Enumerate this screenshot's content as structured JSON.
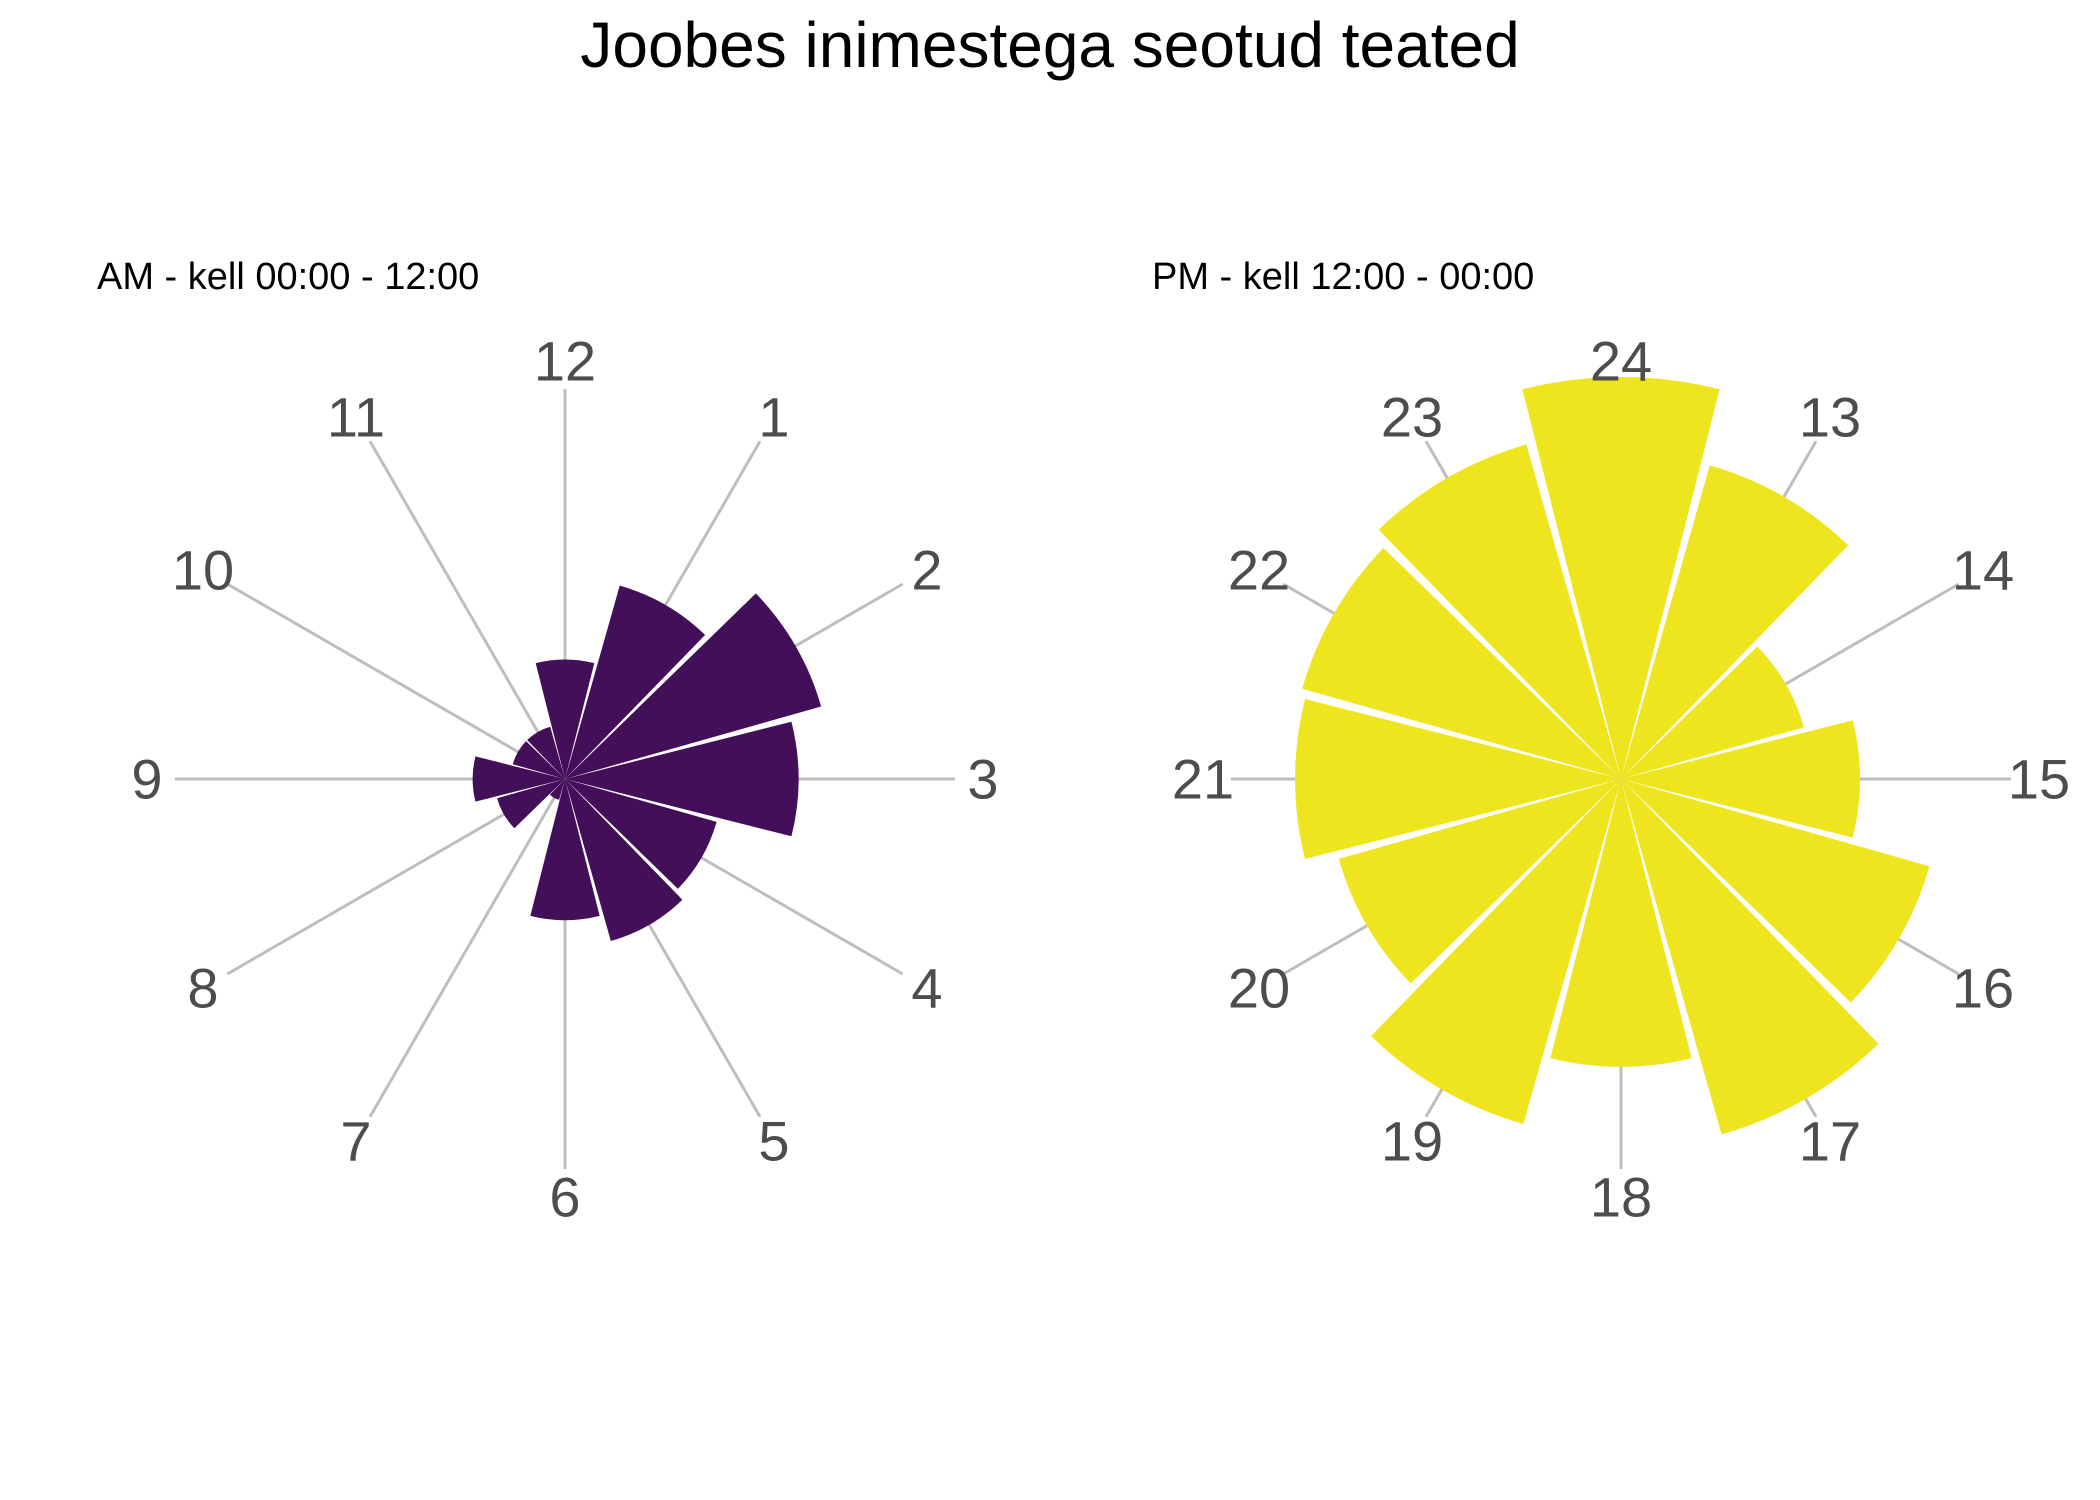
{
  "title": "Joobes inimestega seotud teated",
  "chart_data": [
    {
      "type": "bar",
      "polar": true,
      "subtitle": "AM - kell 00:00 - 12:00",
      "categories": [
        "12",
        "1",
        "2",
        "3",
        "4",
        "5",
        "6",
        "7",
        "8",
        "9",
        "10",
        "11"
      ],
      "values": [
        110,
        185,
        245,
        215,
        145,
        155,
        130,
        20,
        65,
        85,
        50,
        50
      ],
      "max_value": 405,
      "bar_color": "#440F59",
      "gridline_color": "#BEBEBE"
    },
    {
      "type": "bar",
      "polar": true,
      "subtitle": "PM - kell 12:00 - 00:00",
      "categories": [
        "24",
        "13",
        "14",
        "15",
        "16",
        "17",
        "18",
        "19",
        "20",
        "21",
        "22",
        "23"
      ],
      "values": [
        370,
        300,
        175,
        220,
        295,
        340,
        265,
        330,
        270,
        300,
        305,
        320
      ],
      "max_value": 405,
      "bar_color": "#EFE51F",
      "gridline_color": "#BEBEBE"
    }
  ]
}
